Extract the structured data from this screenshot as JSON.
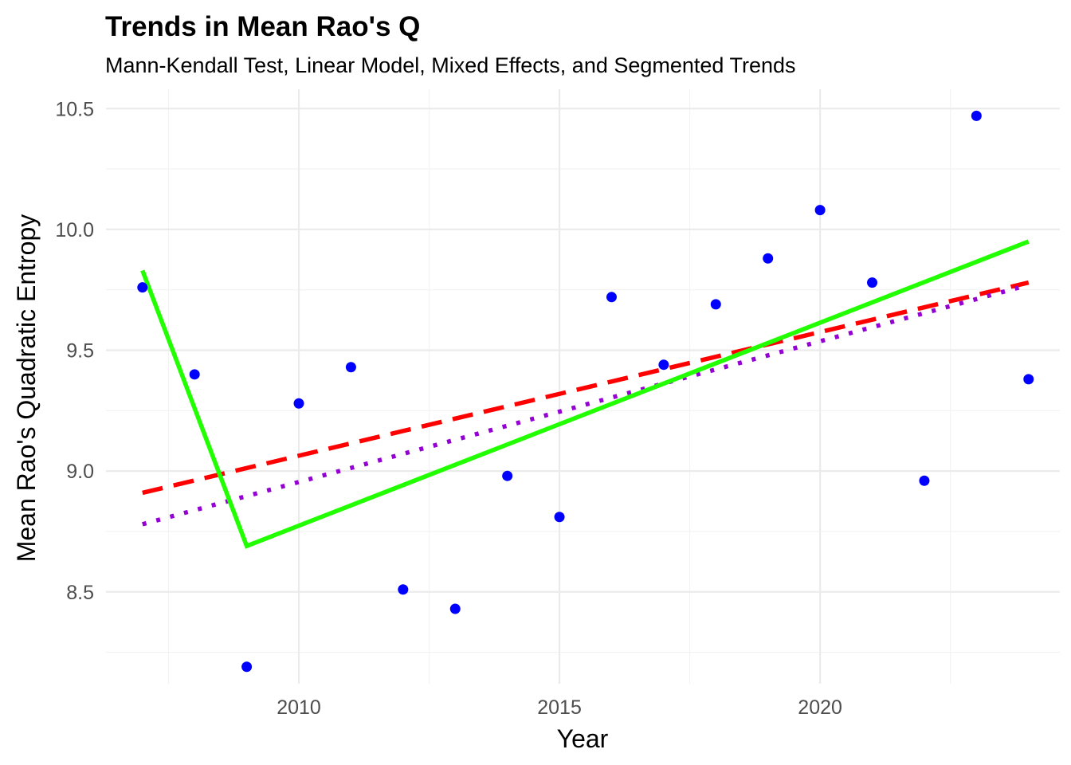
{
  "chart_data": {
    "type": "scatter",
    "title": "Trends in Mean Rao's Q",
    "subtitle": "Mann-Kendall Test, Linear Model, Mixed Effects, and Segmented Trends",
    "xlabel": "Year",
    "ylabel": "Mean Rao's Quadratic Entropy",
    "xlim": [
      2006.3,
      2024.6
    ],
    "ylim": [
      8.12,
      10.58
    ],
    "x_major_ticks": [
      2010,
      2015,
      2020
    ],
    "x_minor_ticks": [
      2007.5,
      2012.5,
      2017.5,
      2022.5
    ],
    "y_major_ticks": [
      8.5,
      9.0,
      9.5,
      10.0,
      10.5
    ],
    "y_minor_ticks": [
      8.25,
      8.75,
      9.25,
      9.75,
      10.25
    ],
    "x_tick_labels": [
      "2010",
      "2015",
      "2020"
    ],
    "y_tick_labels": [
      "8.5",
      "9.0",
      "9.5",
      "10.0",
      "10.5"
    ],
    "grid": true,
    "points": {
      "color": "#0000ff",
      "x": [
        2007,
        2008,
        2009,
        2010,
        2011,
        2012,
        2013,
        2014,
        2015,
        2016,
        2017,
        2018,
        2019,
        2020,
        2021,
        2022,
        2023,
        2024
      ],
      "y": [
        9.76,
        9.4,
        8.19,
        9.28,
        9.43,
        8.51,
        8.43,
        8.98,
        8.81,
        9.72,
        9.44,
        9.69,
        9.88,
        10.08,
        9.78,
        8.96,
        10.47,
        9.38
      ]
    },
    "series": [
      {
        "style": "dashed",
        "color": "#ff0000",
        "x": [
          2007,
          2024
        ],
        "y": [
          8.91,
          9.78
        ]
      },
      {
        "style": "dotted",
        "color": "#9400d3",
        "x": [
          2007,
          2024
        ],
        "y": [
          8.78,
          9.77
        ]
      },
      {
        "style": "solid",
        "color": "#22ff00",
        "x": [
          2007,
          2009,
          2024
        ],
        "y": [
          9.83,
          8.69,
          9.95
        ]
      }
    ]
  }
}
